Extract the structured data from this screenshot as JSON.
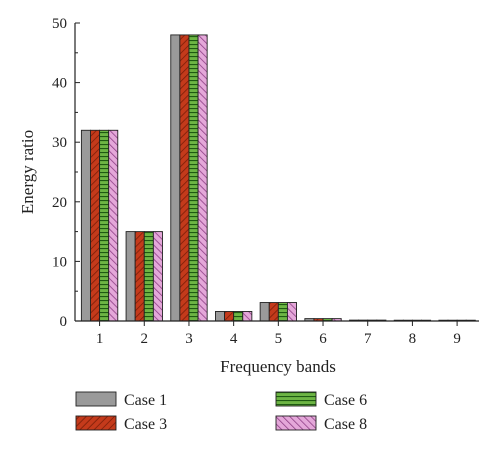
{
  "chart_data": {
    "type": "bar",
    "title": "",
    "xlabel": "Frequency bands",
    "ylabel": "Energy ratio",
    "ylim": [
      0,
      50
    ],
    "yticks": [
      0,
      10,
      20,
      30,
      40,
      50
    ],
    "categories": [
      "1",
      "2",
      "3",
      "4",
      "5",
      "6",
      "7",
      "8",
      "9"
    ],
    "series": [
      {
        "name": "Case 1",
        "values": [
          32,
          15,
          48,
          1.6,
          3.1,
          0.4,
          0.15,
          0.1,
          0.05
        ],
        "color": "#9a9a9a",
        "pattern": "solid"
      },
      {
        "name": "Case 3",
        "values": [
          32,
          15,
          48,
          1.6,
          3.1,
          0.4,
          0.15,
          0.1,
          0.05
        ],
        "color": "#d2401e",
        "pattern": "diagonal-forward"
      },
      {
        "name": "Case 6",
        "values": [
          32,
          15,
          48,
          1.6,
          3.1,
          0.4,
          0.15,
          0.1,
          0.05
        ],
        "color": "#5fa33a",
        "pattern": "horizontal"
      },
      {
        "name": "Case 8",
        "values": [
          32,
          15,
          48,
          1.6,
          3.1,
          0.4,
          0.15,
          0.1,
          0.05
        ],
        "color": "#d58bc9",
        "pattern": "diagonal-back"
      }
    ],
    "grid": false,
    "legend_position": "bottom"
  }
}
